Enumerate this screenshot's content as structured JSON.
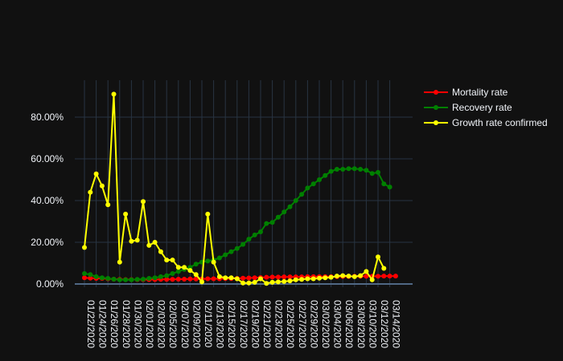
{
  "chart_data": {
    "type": "line",
    "title": "",
    "xlabel": "",
    "ylabel": "",
    "ylim": [
      0,
      0.98
    ],
    "y_ticks": [
      {
        "value": 0.0,
        "label": "0.00%"
      },
      {
        "value": 0.2,
        "label": "20.00%"
      },
      {
        "value": 0.4,
        "label": "40.00%"
      },
      {
        "value": 0.6,
        "label": "60.00%"
      },
      {
        "value": 0.8,
        "label": "80.00%"
      }
    ],
    "x_tick_labels": [
      "01/22/2020",
      "01/24/2020",
      "01/26/2020",
      "01/28/2020",
      "01/30/2020",
      "02/01/2020",
      "02/03/2020",
      "02/05/2020",
      "02/07/2020",
      "02/09/2020",
      "02/11/2020",
      "02/13/2020",
      "02/15/2020",
      "02/17/2020",
      "02/19/2020",
      "02/21/2020",
      "02/23/2020",
      "02/25/2020",
      "02/27/2020",
      "02/29/2020",
      "03/02/2020",
      "03/04/2020",
      "03/06/2020",
      "03/08/2020",
      "03/10/2020",
      "03/12/2020",
      "03/14/2020"
    ],
    "grid": true,
    "legend_position": "top-right",
    "series": [
      {
        "name": "Mortality rate",
        "color": "#ff0000",
        "values": [
          0.03,
          0.028,
          0.027,
          0.027,
          0.025,
          0.023,
          0.022,
          0.021,
          0.021,
          0.021,
          0.021,
          0.021,
          0.021,
          0.022,
          0.022,
          0.022,
          0.023,
          0.023,
          0.024,
          0.024,
          0.024,
          0.025,
          0.025,
          0.025,
          0.026,
          0.026,
          0.027,
          0.028,
          0.029,
          0.03,
          0.031,
          0.032,
          0.033,
          0.033,
          0.034,
          0.034,
          0.034,
          0.034,
          0.035,
          0.035,
          0.035,
          0.035,
          0.035,
          0.035,
          0.036,
          0.036,
          0.037,
          0.037,
          0.037,
          0.037,
          0.037,
          0.038,
          0.038,
          0.038
        ]
      },
      {
        "name": "Recovery rate",
        "color": "#008000",
        "values": [
          0.05,
          0.045,
          0.035,
          0.03,
          0.027,
          0.023,
          0.02,
          0.02,
          0.02,
          0.022,
          0.023,
          0.027,
          0.03,
          0.035,
          0.04,
          0.05,
          0.06,
          0.07,
          0.08,
          0.095,
          0.105,
          0.11,
          0.115,
          0.125,
          0.14,
          0.155,
          0.17,
          0.19,
          0.215,
          0.235,
          0.25,
          0.29,
          0.295,
          0.32,
          0.345,
          0.37,
          0.4,
          0.43,
          0.46,
          0.48,
          0.5,
          0.52,
          0.54,
          0.55,
          0.55,
          0.553,
          0.553,
          0.55,
          0.545,
          0.53,
          0.535,
          0.48,
          0.465
        ]
      },
      {
        "name": "Growth rate confirmed",
        "color": "#ffff00",
        "values": [
          0.175,
          0.44,
          0.528,
          0.47,
          0.38,
          0.91,
          0.105,
          0.335,
          0.205,
          0.21,
          0.395,
          0.185,
          0.2,
          0.155,
          0.115,
          0.115,
          0.08,
          0.08,
          0.065,
          0.045,
          0.01,
          0.335,
          0.105,
          0.035,
          0.03,
          0.03,
          0.025,
          0.005,
          0.005,
          0.008,
          0.025,
          0.003,
          0.008,
          0.01,
          0.012,
          0.015,
          0.02,
          0.022,
          0.025,
          0.025,
          0.028,
          0.03,
          0.032,
          0.038,
          0.04,
          0.038,
          0.035,
          0.04,
          0.06,
          0.02,
          0.13,
          0.075
        ]
      }
    ]
  }
}
